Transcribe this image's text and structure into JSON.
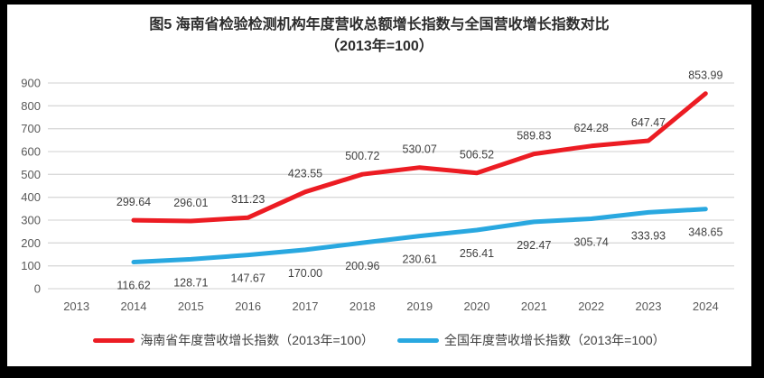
{
  "title_line1": "图5  海南省检验检测机构年度营收总额增长指数与全国营收增长指数对比",
  "title_line2": "（2013年=100）",
  "colors": {
    "hainan_line": "#ec1c23",
    "national_line": "#29a8e0",
    "gridline": "#d9d9d9",
    "tick_label": "#595959",
    "data_label": "#404040",
    "frame_background": "#000000",
    "chart_background": "#ffffff"
  },
  "chart_data": {
    "type": "line",
    "title": "图5 海南省检验检测机构年度营收总额增长指数与全国营收增长指数对比（2013年=100）",
    "categories": [
      "2013",
      "2014",
      "2015",
      "2016",
      "2017",
      "2018",
      "2019",
      "2020",
      "2021",
      "2022",
      "2023",
      "2024"
    ],
    "yticks": [
      0,
      100,
      200,
      300,
      400,
      500,
      600,
      700,
      800,
      900
    ],
    "ylim": [
      0,
      900
    ],
    "grid": true,
    "legend_position": "bottom",
    "series": [
      {
        "name": "海南省年度营收增长指数（2013年=100）",
        "color": "#ec1c23",
        "label_position": "above",
        "values": [
          null,
          299.64,
          296.01,
          311.23,
          423.55,
          500.72,
          530.07,
          506.52,
          589.83,
          624.28,
          647.47,
          853.99
        ],
        "labels": [
          null,
          "299.64",
          "296.01",
          "311.23",
          "423.55",
          "500.72",
          "530.07",
          "506.52",
          "589.83",
          "624.28",
          "647.47",
          "853.99"
        ]
      },
      {
        "name": "全国年度营收增长指数（2013年=100）",
        "color": "#29a8e0",
        "label_position": "below",
        "values": [
          null,
          116.62,
          128.71,
          147.67,
          170.0,
          200.96,
          230.61,
          256.41,
          292.47,
          305.74,
          333.93,
          348.65
        ],
        "labels": [
          null,
          "116.62",
          "128.71",
          "147.67",
          "170.00",
          "200.96",
          "230.61",
          "256.41",
          "292.47",
          "305.74",
          "333.93",
          "348.65"
        ]
      }
    ]
  },
  "legend": {
    "items": [
      {
        "label": "海南省年度营收增长指数（2013年=100）",
        "color": "#ec1c23"
      },
      {
        "label": "全国年度营收增长指数（2013年=100）",
        "color": "#29a8e0"
      }
    ]
  }
}
